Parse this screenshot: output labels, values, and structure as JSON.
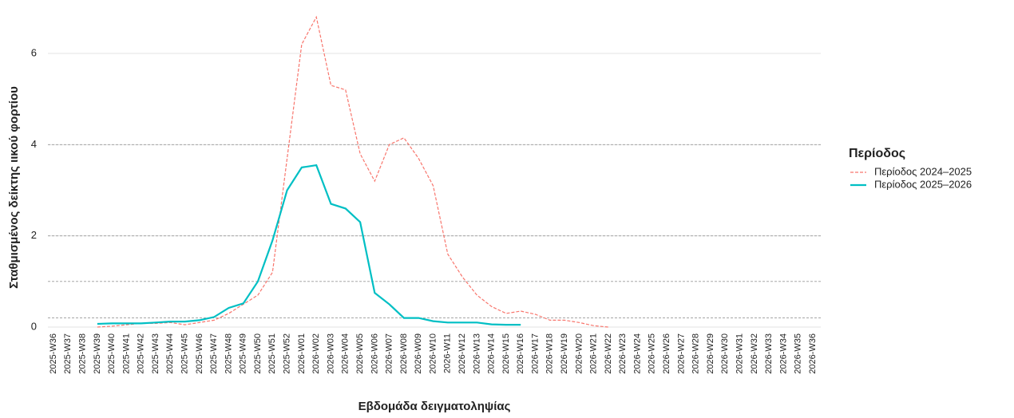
{
  "chart_data": {
    "type": "line",
    "y_label": "Σταθμισμένος δείκτης ιικού φορτίου",
    "x_label": "Εβδομάδα δειγματοληψίας",
    "legend_title": "Περίοδος",
    "legend_position": "right",
    "categories": [
      "2025-W36",
      "2025-W37",
      "2025-W38",
      "2025-W39",
      "2025-W40",
      "2025-W41",
      "2025-W42",
      "2025-W43",
      "2025-W44",
      "2025-W45",
      "2025-W46",
      "2025-W47",
      "2025-W48",
      "2025-W49",
      "2025-W50",
      "2025-W51",
      "2025-W52",
      "2026-W01",
      "2026-W02",
      "2026-W03",
      "2026-W04",
      "2026-W05",
      "2026-W06",
      "2026-W07",
      "2026-W08",
      "2026-W09",
      "2026-W10",
      "2026-W11",
      "2026-W12",
      "2026-W13",
      "2026-W14",
      "2026-W15",
      "2026-W16",
      "2026-W17",
      "2026-W18",
      "2026-W19",
      "2026-W20",
      "2026-W21",
      "2026-W22",
      "2026-W23",
      "2026-W24",
      "2026-W25",
      "2026-W26",
      "2026-W27",
      "2026-W28",
      "2026-W29",
      "2026-W30",
      "2026-W31",
      "2026-W32",
      "2026-W33",
      "2026-W34",
      "2026-W35",
      "2026-W36"
    ],
    "series": [
      {
        "name": "Περίοδος 2024–2025",
        "color": "#F8766D",
        "dash": true,
        "values": [
          null,
          null,
          null,
          0.0,
          0.02,
          0.05,
          0.08,
          0.08,
          0.1,
          0.05,
          0.1,
          0.15,
          0.3,
          0.5,
          0.7,
          1.2,
          3.7,
          6.2,
          6.8,
          5.3,
          5.2,
          3.8,
          3.2,
          4.0,
          4.15,
          3.7,
          3.1,
          1.6,
          1.1,
          0.7,
          0.45,
          0.3,
          0.35,
          0.28,
          0.15,
          0.15,
          0.1,
          0.03,
          0.0,
          null,
          null,
          null,
          null,
          null,
          null,
          null,
          null,
          null,
          null,
          null,
          null,
          null,
          null
        ]
      },
      {
        "name": "Περίοδος 2025–2026",
        "color": "#00BFC4",
        "dash": false,
        "values": [
          null,
          null,
          null,
          0.07,
          0.08,
          0.08,
          0.08,
          0.1,
          0.12,
          0.12,
          0.15,
          0.22,
          0.42,
          0.52,
          1.0,
          1.9,
          3.0,
          3.5,
          3.55,
          2.7,
          2.6,
          2.3,
          0.75,
          0.5,
          0.2,
          0.2,
          0.13,
          0.1,
          0.1,
          0.1,
          0.06,
          0.05,
          0.05,
          null,
          null,
          null,
          null,
          null,
          null,
          null,
          null,
          null,
          null,
          null,
          null,
          null,
          null,
          null,
          null,
          null,
          null,
          null,
          null
        ]
      }
    ],
    "ylim": [
      0,
      7
    ],
    "yticks": [
      0,
      2,
      4,
      6
    ],
    "grid": true,
    "reference_lines": [
      0.2,
      1,
      2,
      4
    ]
  }
}
